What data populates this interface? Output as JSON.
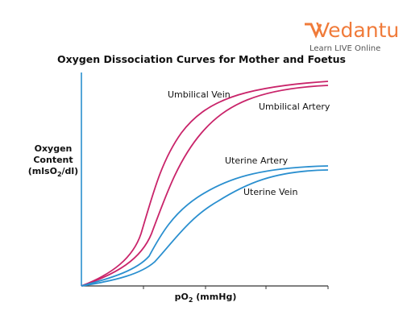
{
  "logo": {
    "name": "Vedantu",
    "tagline": "Learn LIVE Online"
  },
  "title": "Oxygen Dissociation Curves for Mother and Foetus",
  "y_axis_label": {
    "line1": "Oxygen",
    "line2": "Content",
    "line3": [
      "(mlsO",
      "2",
      "/dl)"
    ]
  },
  "x_axis_label": [
    "pO",
    "2",
    " (mmHg)"
  ],
  "curves": [
    {
      "label": "Umbilical Vein"
    },
    {
      "label": "Umbilical Artery"
    },
    {
      "label": "Uterine Artery"
    },
    {
      "label": "Uterine Vein"
    }
  ]
}
